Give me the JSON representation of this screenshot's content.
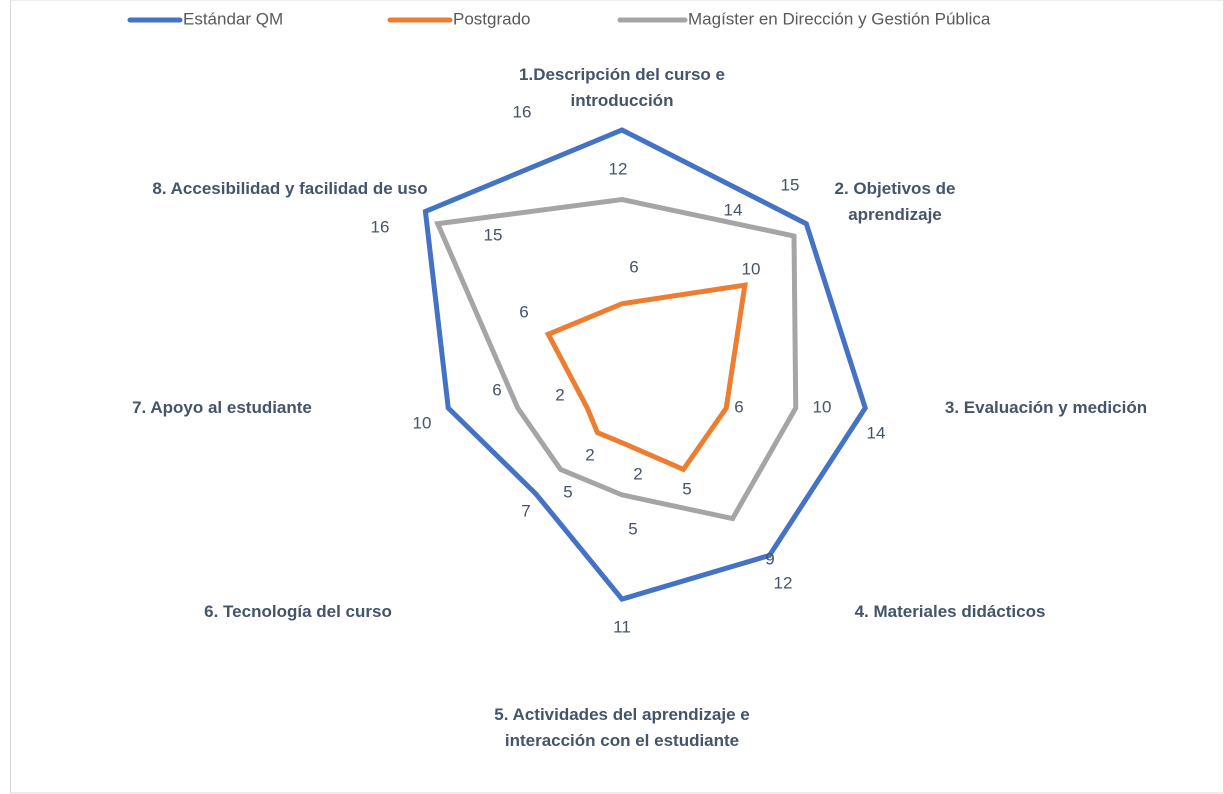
{
  "chart_data": {
    "type": "radar",
    "categories": [
      "1.Descripción del curso e introducción",
      "2. Objetivos de aprendizaje",
      "3. Evaluación y medición",
      "4. Materiales didácticos",
      "5. Actividades del aprendizaje e interacción con el estudiante",
      "6. Tecnología del curso",
      "7. Apoyo al estudiante",
      "8. Accesibilidad y facilidad de uso"
    ],
    "series": [
      {
        "name": "Estándar QM",
        "color": "#4472c4",
        "values": [
          16,
          15,
          14,
          12,
          11,
          7,
          10,
          16
        ]
      },
      {
        "name": "Postgrado",
        "color": "#ed7d31",
        "values": [
          6,
          10,
          6,
          5,
          2,
          2,
          2,
          6
        ]
      },
      {
        "name": "Magíster en Dirección y Gestión Pública",
        "color": "#a5a5a5",
        "values": [
          12,
          14,
          10,
          9,
          5,
          5,
          6,
          15
        ]
      }
    ],
    "ylim": [
      0,
      16
    ],
    "legend": "top",
    "grid": false
  }
}
